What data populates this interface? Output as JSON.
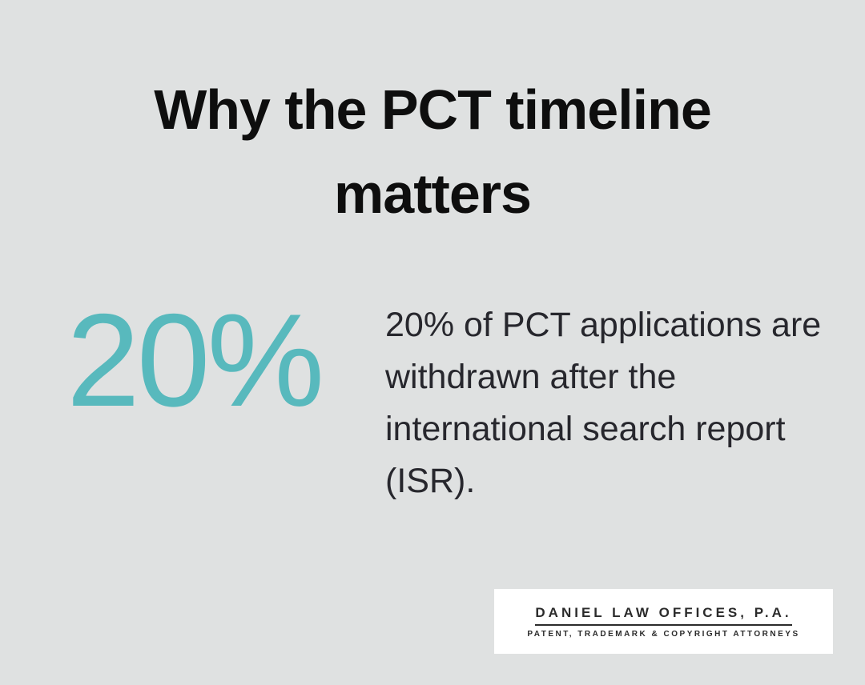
{
  "background_color": "#dfe1e1",
  "title": {
    "lines": [
      "Why the PCT timeline",
      "matters"
    ],
    "color": "#0e0e0e"
  },
  "stat": {
    "value": "20%",
    "value_color": "#58b9bd",
    "description": "20% of PCT applications are withdrawn after the international search report (ISR).",
    "description_color": "#27272d"
  },
  "logo": {
    "name": "DANIEL LAW OFFICES, P.A.",
    "tagline": "PATENT, TRADEMARK & COPYRIGHT ATTORNEYS",
    "text_color": "#2b2b2b",
    "box_color": "#ffffff"
  }
}
